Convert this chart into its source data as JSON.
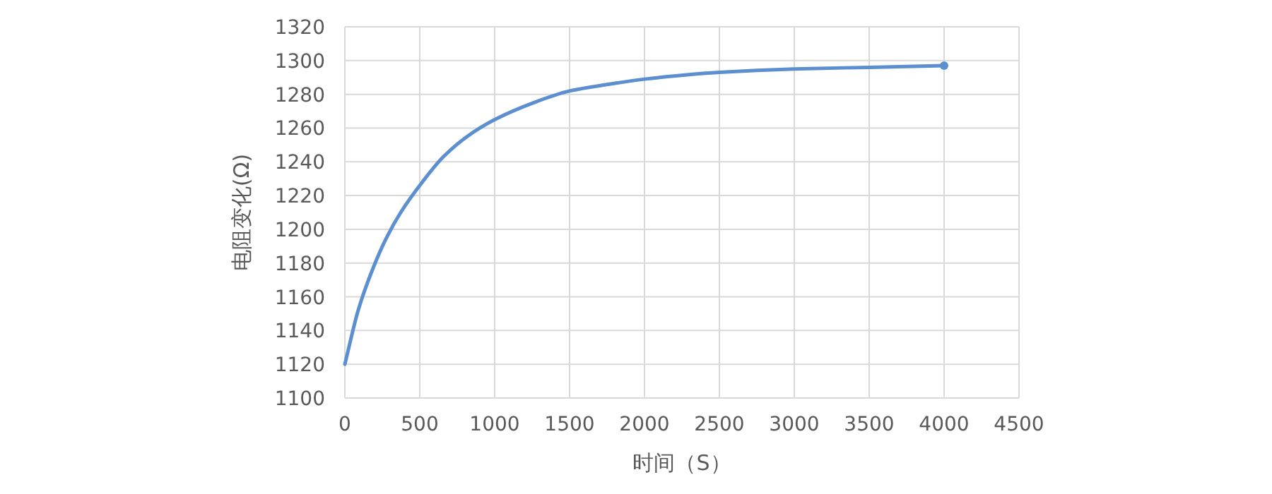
{
  "chart_data": {
    "type": "line",
    "xlabel": "时间（S）",
    "ylabel": "电阻变化(Ω)",
    "xlim": [
      0,
      4500
    ],
    "ylim": [
      1100,
      1320
    ],
    "xticks": [
      0,
      500,
      1000,
      1500,
      2000,
      2500,
      3000,
      3500,
      4000,
      4500
    ],
    "yticks": [
      1100,
      1120,
      1140,
      1160,
      1180,
      1200,
      1220,
      1240,
      1260,
      1280,
      1300,
      1320
    ],
    "grid": true,
    "line_style": "solid",
    "marker": "none",
    "series": [
      {
        "color": "#5b8fd0",
        "x": [
          0,
          89,
          184,
          278,
          373,
          500,
          658,
          816,
          1000,
          1259,
          1500,
          1766,
          2000,
          2500,
          3000,
          3500,
          4000
        ],
        "values": [
          1120,
          1152,
          1176,
          1195,
          1210,
          1226,
          1243,
          1255,
          1265,
          1275,
          1282,
          1286,
          1289,
          1293,
          1295,
          1296,
          1297
        ]
      },
      {
        "type": "scatter",
        "color": "#5b8fd0",
        "marker": "circle",
        "x": [
          4000
        ],
        "values": [
          1297
        ]
      }
    ]
  }
}
